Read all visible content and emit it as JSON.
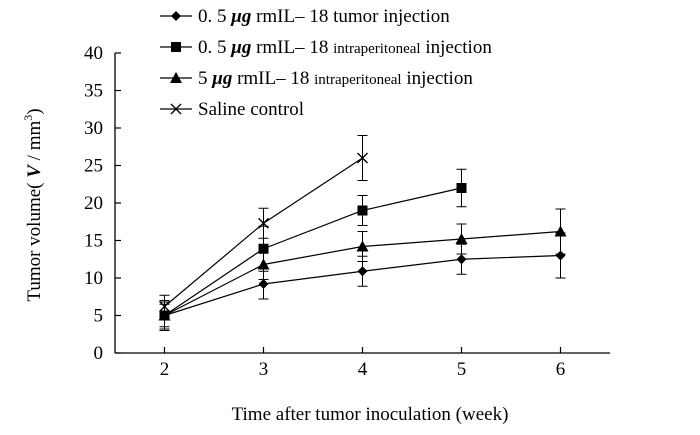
{
  "chart_data": {
    "type": "line",
    "xlabel": "Time after tumor inoculation (week)",
    "ylabel_prefix": "Tumor volume( ",
    "ylabel_var": "V",
    "ylabel_suffix": " / mm",
    "ylabel_sup": "3",
    "ylabel_close": ")",
    "xlim": [
      1.5,
      6.5
    ],
    "ylim": [
      0,
      40
    ],
    "xticks": [
      2,
      3,
      4,
      5,
      6
    ],
    "yticks": [
      0,
      5,
      10,
      15,
      20,
      25,
      30,
      35,
      40
    ],
    "grid": false,
    "legend_position": "top",
    "series": [
      {
        "name": "0.5 μg rmIL-18 tumor injection",
        "legend_parts": [
          "0. 5 ",
          "μg",
          " rmIL– 18 tumor injection"
        ],
        "marker": "diamond",
        "x": [
          2,
          3,
          4,
          5,
          6
        ],
        "values": [
          5.0,
          9.2,
          10.9,
          12.5,
          13.0
        ],
        "errors": [
          1.5,
          2.0,
          2.0,
          2.0,
          3.0
        ]
      },
      {
        "name": "0.5 μg rmIL-18 intraperitoneal injection",
        "legend_parts": [
          "0. 5 ",
          "μg",
          " rmIL– 18 ",
          "intraperitoneal",
          " injection"
        ],
        "marker": "square",
        "x": [
          2,
          3,
          4,
          5
        ],
        "values": [
          5.0,
          13.9,
          19.0,
          22.0
        ],
        "errors": [
          2.0,
          3.0,
          2.0,
          2.5
        ]
      },
      {
        "name": "5 μg rmIL-18 intraperitoneal injection",
        "legend_parts": [
          "5 ",
          "μg",
          " rmIL– 18 ",
          "intraperitoneal",
          " injection"
        ],
        "marker": "triangle",
        "x": [
          2,
          3,
          4,
          5,
          6
        ],
        "values": [
          5.0,
          11.8,
          14.2,
          15.2,
          16.2
        ],
        "errors": [
          1.8,
          2.0,
          2.0,
          2.0,
          3.0
        ]
      },
      {
        "name": "Saline control",
        "legend_parts": [
          "Saline control"
        ],
        "marker": "x",
        "x": [
          2,
          3,
          4
        ],
        "values": [
          6.2,
          17.3,
          26.0
        ],
        "errors": [
          1.5,
          2.0,
          3.0
        ]
      }
    ]
  }
}
